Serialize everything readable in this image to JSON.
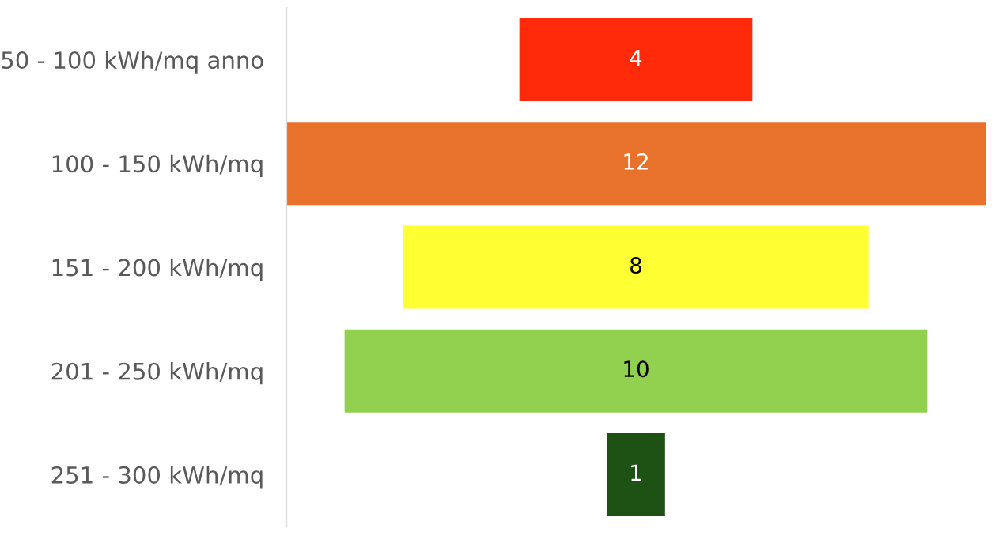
{
  "chart_data": {
    "type": "other",
    "categories": [
      "50 - 100 kWh/mq anno",
      "100 - 150 kWh/mq",
      "151 - 200 kWh/mq",
      "201 - 250 kWh/mq",
      "251 - 300 kWh/mq"
    ],
    "values": [
      4,
      12,
      8,
      10,
      1
    ],
    "colors": [
      "#ff2a0a",
      "#e8722c",
      "#ffff33",
      "#92d050",
      "#1e5214"
    ],
    "data_labels": true
  }
}
